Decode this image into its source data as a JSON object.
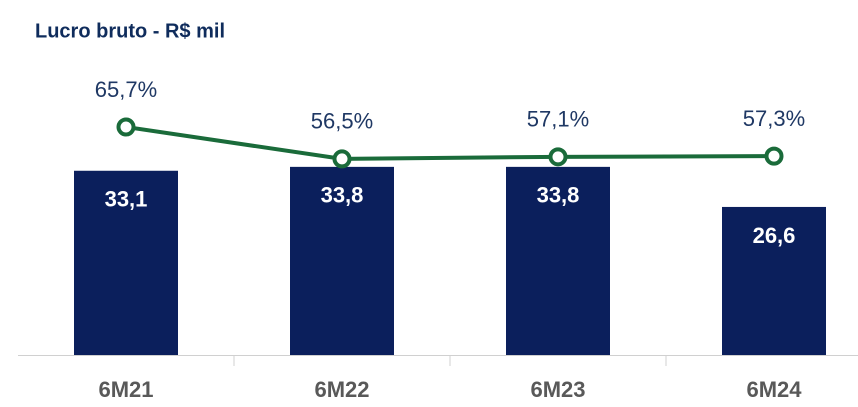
{
  "chart_data": {
    "type": "bar",
    "title": "Lucro bruto - R$ mil",
    "categories": [
      "6M21",
      "6M22",
      "6M23",
      "6M24"
    ],
    "series": [
      {
        "type": "bar",
        "color": "#0b1f5c",
        "values": [
          33.1,
          33.8,
          33.8,
          26.6
        ],
        "value_labels": [
          "33,1",
          "33,8",
          "33,8",
          "26,6"
        ]
      },
      {
        "type": "line",
        "axis": "y2",
        "color": "#1a6b3a",
        "values": [
          65.7,
          56.5,
          57.1,
          57.3
        ],
        "value_labels": [
          "65,7%",
          "56,5%",
          "57,1%",
          "57,3%"
        ]
      }
    ],
    "ylim": [
      0,
      53
    ],
    "y2lim": [
      0,
      85
    ]
  }
}
